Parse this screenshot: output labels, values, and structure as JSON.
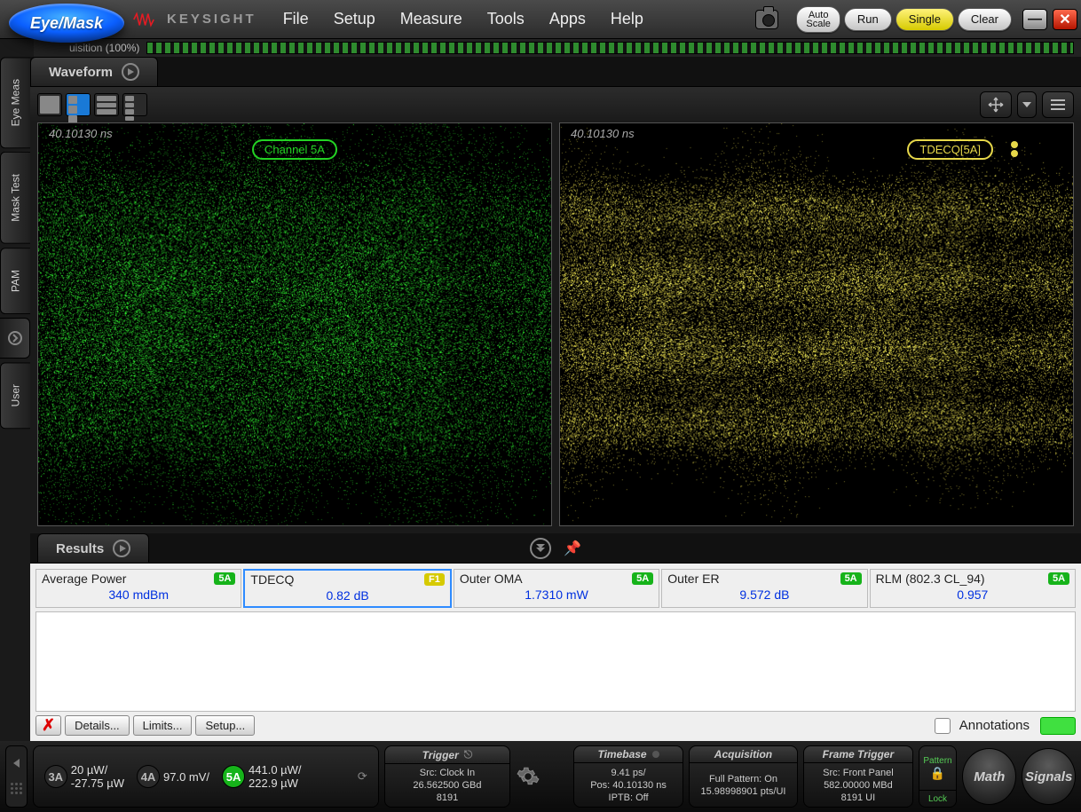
{
  "topbar": {
    "eye_badge": "Eye/Mask",
    "brand": "KEYSIGHT",
    "menu": [
      "File",
      "Setup",
      "Measure",
      "Tools",
      "Apps",
      "Help"
    ],
    "autoscale": "Auto\nScale",
    "run": "Run",
    "single": "Single",
    "clear": "Clear"
  },
  "acq": {
    "label": "uisition   (100%)"
  },
  "sidetabs": [
    "Eye Meas",
    "Mask Test",
    "PAM",
    "User"
  ],
  "waveform_tab": "Waveform",
  "eye": {
    "timestamp": "40.10130 ns",
    "left_label": "Channel 5A",
    "right_label": "TDECQ[5A]",
    "left_color": "#2bdc2b",
    "right_color": "#e7d84a",
    "pam_levels": [
      0.22,
      0.39,
      0.57,
      0.75
    ],
    "periods": 2.5
  },
  "results_tab": "Results",
  "measurements": [
    {
      "name": "Average Power",
      "badge": "5A",
      "badge_cls": "g",
      "value": "340 mdBm",
      "sel": false
    },
    {
      "name": "TDECQ",
      "badge": "F1",
      "badge_cls": "y",
      "value": "0.82 dB",
      "sel": true
    },
    {
      "name": "Outer OMA",
      "badge": "5A",
      "badge_cls": "g",
      "value": "1.7310 mW",
      "sel": false
    },
    {
      "name": "Outer ER",
      "badge": "5A",
      "badge_cls": "g",
      "value": "9.572 dB",
      "sel": false
    },
    {
      "name": "RLM (802.3 CL_94)",
      "badge": "5A",
      "badge_cls": "g",
      "value": "0.957",
      "sel": false
    }
  ],
  "results_buttons": {
    "details": "Details...",
    "limits": "Limits...",
    "setup": "Setup...",
    "annotations": "Annotations"
  },
  "bottom": {
    "ch3a": {
      "badge": "3A",
      "l1": "20 µW/",
      "l2": "-27.75 µW"
    },
    "ch4a": {
      "badge": "4A",
      "l1": "97.0 mV/",
      "l2": " "
    },
    "ch5a": {
      "badge": "5A",
      "l1": "441.0 µW/",
      "l2": "222.9 µW"
    },
    "trigger": {
      "title": "Trigger",
      "l1": "Src: Clock In",
      "l2": "26.562500 GBd",
      "l3": "8191"
    },
    "timebase": {
      "title": "Timebase",
      "l1": "9.41 ps/",
      "l2": "Pos: 40.10130 ns",
      "l3": "IPTB: Off"
    },
    "acquisition": {
      "title": "Acquisition",
      "l1": "Full Pattern: On",
      "l2": "15.98998901 pts/UI",
      "l3": ""
    },
    "frame": {
      "title": "Frame Trigger",
      "l1": "Src: Front Panel",
      "l2": "582.00000 MBd",
      "l3": "8191 UI"
    },
    "pattern_lock": {
      "pattern": "Pattern",
      "lock": "Lock"
    },
    "math": "Math",
    "signals": "Signals"
  }
}
